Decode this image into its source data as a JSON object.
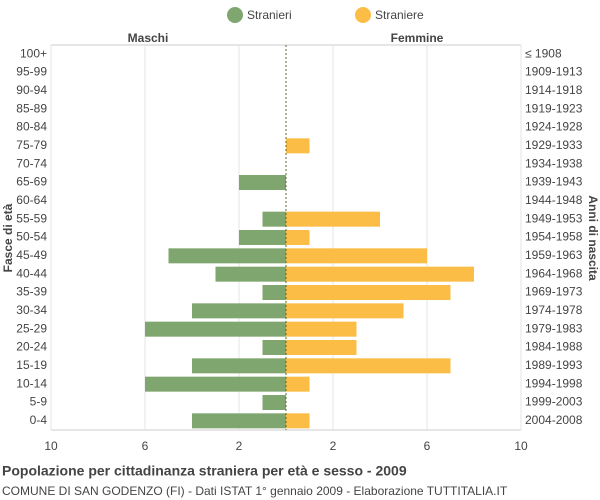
{
  "chart_data": {
    "type": "pyramid",
    "title": "Popolazione per cittadinanza straniera per età e sesso - 2009",
    "subtitle": "COMUNE DI SAN GODENZO (FI) - Dati ISTAT 1° gennaio 2009 - Elaborazione TUTTITALIA.IT",
    "left_label": "Maschi",
    "right_label": "Femmine",
    "y_axis_label": "Fasce di età",
    "y2_axis_label": "Anni di nascita",
    "categories": [
      "100+",
      "95-99",
      "90-94",
      "85-89",
      "80-84",
      "75-79",
      "70-74",
      "65-69",
      "60-64",
      "55-59",
      "50-54",
      "45-49",
      "40-44",
      "35-39",
      "30-34",
      "25-29",
      "20-24",
      "15-19",
      "10-14",
      "5-9",
      "0-4"
    ],
    "birth_years": [
      "≤ 1908",
      "1909-1913",
      "1914-1918",
      "1919-1923",
      "1924-1928",
      "1929-1933",
      "1934-1938",
      "1939-1943",
      "1944-1948",
      "1949-1953",
      "1954-1958",
      "1959-1963",
      "1964-1968",
      "1969-1973",
      "1974-1978",
      "1979-1983",
      "1984-1988",
      "1989-1993",
      "1994-1998",
      "1999-2003",
      "2004-2008"
    ],
    "series": [
      {
        "name": "Stranieri",
        "color": "#7ea66e",
        "side": "left",
        "values": [
          0,
          0,
          0,
          0,
          0,
          0,
          0,
          2,
          0,
          1,
          2,
          5,
          3,
          1,
          4,
          6,
          1,
          4,
          6,
          1,
          4
        ]
      },
      {
        "name": "Straniere",
        "color": "#fbbd45",
        "side": "right",
        "values": [
          0,
          0,
          0,
          0,
          0,
          1,
          0,
          0,
          0,
          4,
          1,
          6,
          8,
          7,
          5,
          3,
          3,
          7,
          1,
          0,
          1
        ]
      }
    ],
    "xlim": [
      0,
      10
    ],
    "left_xticks": [
      10,
      6,
      2
    ],
    "right_xticks": [
      2,
      6,
      10
    ],
    "grid": true
  }
}
